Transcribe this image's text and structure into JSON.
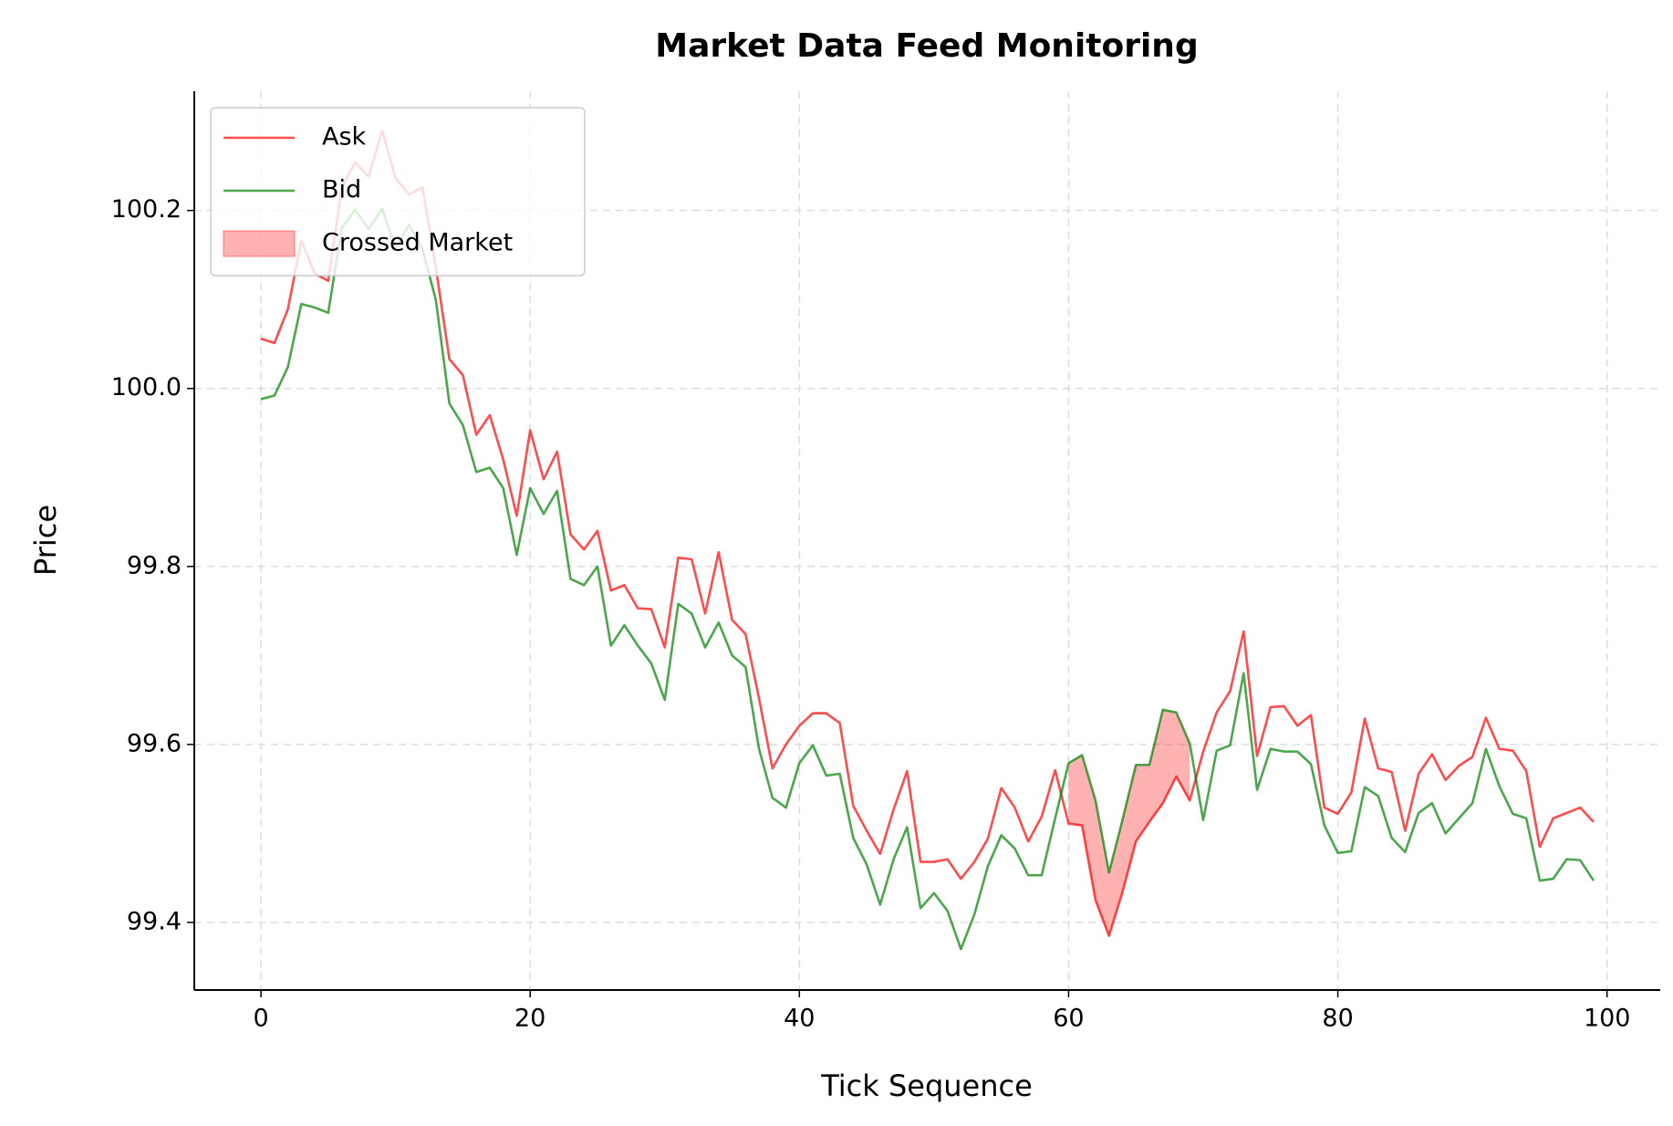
{
  "chart_data": {
    "type": "line",
    "title": "Market Data Feed Monitoring",
    "x_label": "Tick Sequence",
    "y_label": "Price",
    "x": [
      0,
      1,
      2,
      3,
      4,
      5,
      6,
      7,
      8,
      9,
      10,
      11,
      12,
      13,
      14,
      15,
      16,
      17,
      18,
      19,
      20,
      21,
      22,
      23,
      24,
      25,
      26,
      27,
      28,
      29,
      30,
      31,
      32,
      33,
      34,
      35,
      36,
      37,
      38,
      39,
      40,
      41,
      42,
      43,
      44,
      45,
      46,
      47,
      48,
      49,
      50,
      51,
      52,
      53,
      54,
      55,
      56,
      57,
      58,
      59,
      60,
      61,
      62,
      63,
      64,
      65,
      66,
      67,
      68,
      69,
      70,
      71,
      72,
      73,
      74,
      75,
      76,
      77,
      78,
      79,
      80,
      81,
      82,
      83,
      84,
      85,
      86,
      87,
      88,
      89,
      90,
      91,
      92,
      93,
      94,
      95,
      96,
      97,
      98,
      99
    ],
    "series": [
      {
        "name": "Ask",
        "color": "#ff0000",
        "opacity": 0.7,
        "values": [
          100.056,
          100.051,
          100.089,
          100.166,
          100.129,
          100.121,
          100.226,
          100.254,
          100.238,
          100.29,
          100.236,
          100.218,
          100.226,
          100.135,
          100.033,
          100.015,
          99.948,
          99.97,
          99.92,
          99.857,
          99.953,
          99.898,
          99.929,
          99.836,
          99.819,
          99.84,
          99.773,
          99.779,
          99.753,
          99.752,
          99.709,
          99.81,
          99.808,
          99.747,
          99.816,
          99.74,
          99.724,
          99.652,
          99.573,
          99.6,
          99.621,
          99.635,
          99.635,
          99.624,
          99.531,
          99.503,
          99.477,
          99.527,
          99.57,
          99.468,
          99.468,
          99.471,
          99.449,
          99.468,
          99.494,
          99.551,
          99.529,
          99.491,
          99.519,
          99.571,
          99.511,
          99.509,
          99.425,
          99.385,
          99.434,
          99.491,
          99.513,
          99.534,
          99.564,
          99.537,
          99.592,
          99.636,
          99.66,
          99.727,
          99.587,
          99.642,
          99.643,
          99.621,
          99.633,
          99.529,
          99.522,
          99.546,
          99.629,
          99.573,
          99.569,
          99.503,
          99.567,
          99.589,
          99.56,
          99.576,
          99.586,
          99.63,
          99.595,
          99.593,
          99.57,
          99.485,
          99.517,
          99.523,
          99.529,
          99.513
        ]
      },
      {
        "name": "Bid",
        "color": "#008000",
        "opacity": 0.7,
        "values": [
          99.988,
          99.992,
          100.024,
          100.095,
          100.091,
          100.085,
          100.18,
          100.201,
          100.179,
          100.202,
          100.158,
          100.184,
          100.157,
          100.099,
          99.983,
          99.959,
          99.906,
          99.911,
          99.888,
          99.813,
          99.888,
          99.859,
          99.885,
          99.786,
          99.779,
          99.8,
          99.711,
          99.734,
          99.711,
          99.691,
          99.65,
          99.758,
          99.747,
          99.709,
          99.737,
          99.7,
          99.687,
          99.595,
          99.54,
          99.529,
          99.579,
          99.599,
          99.565,
          99.567,
          99.495,
          99.465,
          99.42,
          99.471,
          99.507,
          99.416,
          99.433,
          99.413,
          99.37,
          99.409,
          99.463,
          99.498,
          99.483,
          99.453,
          99.453,
          99.517,
          99.579,
          99.588,
          99.537,
          99.456,
          99.515,
          99.577,
          99.577,
          99.639,
          99.636,
          99.601,
          99.515,
          99.593,
          99.599,
          99.68,
          99.549,
          99.595,
          99.592,
          99.592,
          99.578,
          99.509,
          99.478,
          99.48,
          99.552,
          99.542,
          99.495,
          99.479,
          99.523,
          99.534,
          99.5,
          99.517,
          99.534,
          99.595,
          99.553,
          99.522,
          99.517,
          99.447,
          99.449,
          99.471,
          99.47,
          99.447
        ]
      }
    ],
    "crossed_fill": {
      "name": "Crossed Market",
      "color": "#ff0000",
      "opacity": 0.3
    },
    "xlim": [
      -4.95,
      103.95
    ],
    "xticks": [
      0,
      20,
      40,
      60,
      80,
      100
    ],
    "ylim": [
      99.324,
      100.334
    ],
    "yticks": [
      99.4,
      99.6,
      99.8,
      {
        "value": 100,
        "label": "100.0"
      },
      100.2
    ],
    "grid": true,
    "legend": "upper left"
  }
}
